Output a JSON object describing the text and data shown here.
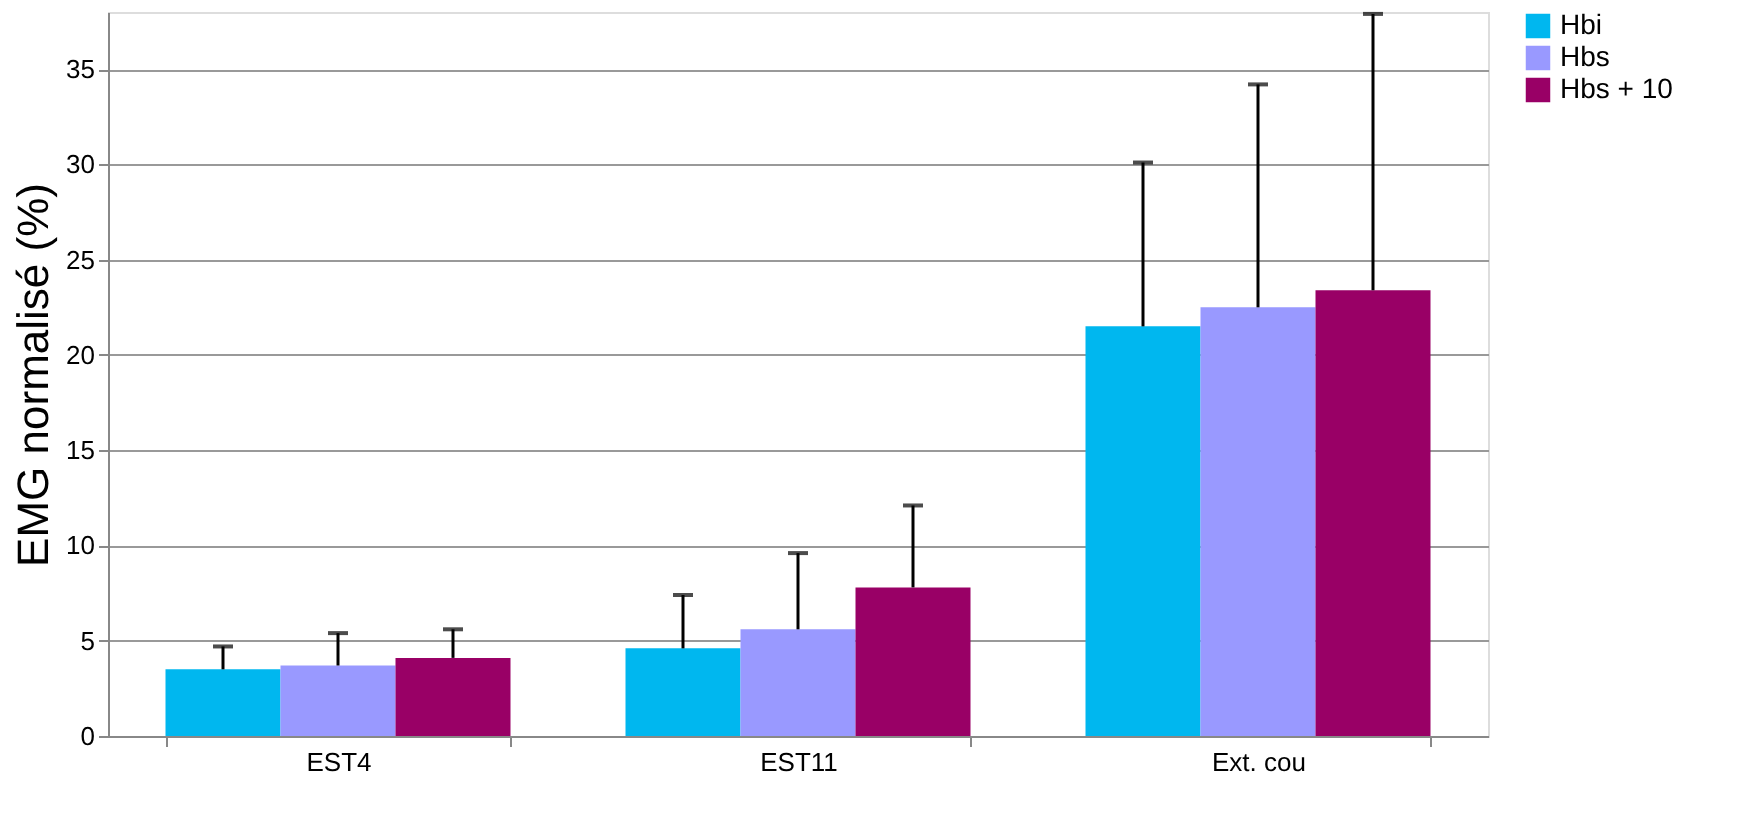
{
  "chart_data": {
    "type": "bar",
    "ylabel": "EMG normalisé (%)",
    "categories": [
      "EST4",
      "EST11",
      "Ext. cou"
    ],
    "series": [
      {
        "name": "Hbi",
        "color": "#00b7ef",
        "values": [
          3.5,
          4.6,
          21.5
        ],
        "errors": [
          [
            3.5,
            4.7
          ],
          [
            4.6,
            7.4
          ],
          [
            21.5,
            30.1
          ]
        ]
      },
      {
        "name": "Hbs",
        "color": "#9999ff",
        "values": [
          3.7,
          5.6,
          22.5
        ],
        "errors": [
          [
            3.7,
            5.4
          ],
          [
            5.6,
            9.6
          ],
          [
            22.5,
            34.2
          ]
        ]
      },
      {
        "name": "Hbs + 10",
        "color": "#990066",
        "values": [
          4.1,
          7.8,
          23.4
        ],
        "errors": [
          [
            4.1,
            5.6
          ],
          [
            7.8,
            12.1
          ],
          [
            23.4,
            37.9
          ]
        ]
      }
    ],
    "ylim": [
      0,
      38
    ],
    "yticks": [
      0,
      5,
      10,
      15,
      20,
      25,
      30,
      35
    ],
    "grid": "y",
    "legend": "right"
  }
}
